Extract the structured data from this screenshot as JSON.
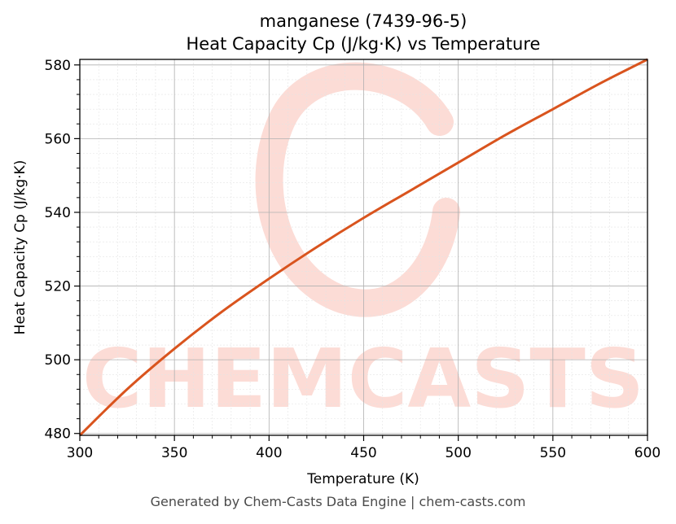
{
  "chart_data": {
    "type": "line",
    "title": "manganese (7439-96-5)",
    "subtitle": "Heat Capacity Cp (J/kg·K) vs Temperature",
    "xlabel": "Temperature (K)",
    "ylabel": "Heat Capacity Cp (J/kg·K)",
    "xlim": [
      300,
      600
    ],
    "ylim": [
      479.5,
      581.5
    ],
    "x_ticks": [
      300,
      350,
      400,
      450,
      500,
      550,
      600
    ],
    "y_ticks": [
      480,
      500,
      520,
      540,
      560,
      580
    ],
    "grid": true,
    "series": [
      {
        "color": "#d9541e",
        "x": [
          300,
          325,
          350,
          375,
          400,
          425,
          450,
          475,
          500,
          525,
          550,
          575,
          600
        ],
        "y": [
          479.5,
          492.0,
          503.0,
          513.0,
          522.0,
          530.5,
          538.5,
          546.0,
          553.5,
          561.0,
          568.0,
          575.0,
          581.5
        ]
      }
    ]
  },
  "watermark": {
    "text": "CHEMCASTS",
    "color": "#fcdcd6"
  },
  "footer": {
    "text": "Generated by Chem-Casts Data Engine | chem-casts.com"
  }
}
